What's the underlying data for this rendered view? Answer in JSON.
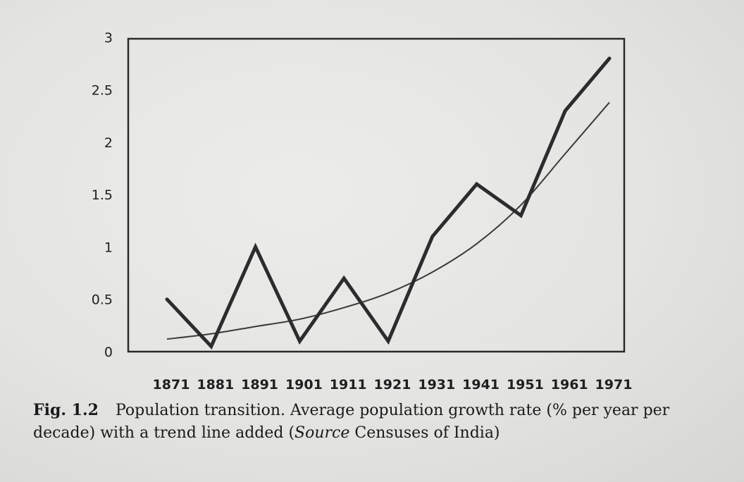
{
  "chart_data": {
    "type": "line",
    "x": [
      "1871",
      "1881",
      "1891",
      "1901",
      "1911",
      "1921",
      "1931",
      "1941",
      "1951",
      "1961",
      "1971"
    ],
    "series": [
      {
        "values": [
          0.5,
          0.05,
          1.0,
          0.1,
          0.7,
          0.1,
          1.1,
          1.6,
          1.3,
          2.3,
          2.8
        ]
      },
      {
        "values": [
          0.12,
          0.17,
          0.24,
          0.31,
          0.42,
          0.56,
          0.76,
          1.03,
          1.4,
          1.89,
          2.38
        ]
      }
    ],
    "yticks": [
      "0",
      "0.5",
      "1",
      "1.5",
      "2",
      "2.5",
      "3"
    ],
    "ylim": [
      0,
      3
    ],
    "grid": false
  },
  "caption": {
    "label": "Fig. 1.2",
    "text_before": "Population transition. Average population growth rate (% per year per decade) with a trend line added (",
    "italic": "Source",
    "text_after": " Censuses of India)"
  }
}
